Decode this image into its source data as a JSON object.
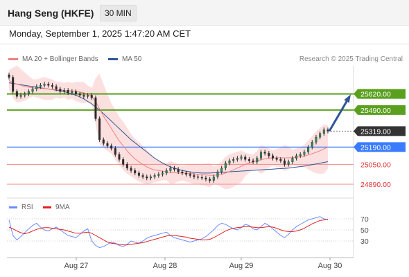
{
  "header": {
    "title": "Hang Seng (HKFE)",
    "interval": "30 MIN",
    "datetime": "Monday, September 1, 2025 1:47:20 AM CET"
  },
  "legend": {
    "ma20_label": "MA 20 + Bollinger Bands",
    "ma50_label": "MA 50",
    "research": "Research © 2025 Trading Central",
    "rsi_label": "RSI",
    "ma9_label": "9MA"
  },
  "colors": {
    "ma20": "#f08080",
    "ma50": "#2f5597",
    "bollinger_fill": "#fbd5d5",
    "green": "#5aa01e",
    "blue": "#3a7bff",
    "red_line": "#f08a8a",
    "candle": "#2a2a2a",
    "rsi": "#6b8cff",
    "rsi_ma": "#e02020",
    "arrow": "#2f5597"
  },
  "chart_data": [
    {
      "type": "candlestick",
      "x_ticks": [
        "Aug 27",
        "Aug 28",
        "Aug 29",
        "Aug 30"
      ],
      "ylim": [
        24800,
        25820
      ],
      "current_price": 25319.0,
      "levels": [
        {
          "value": 25620.0,
          "label": "25620.00",
          "kind": "resistance"
        },
        {
          "value": 25490.0,
          "label": "25490.00",
          "kind": "resistance"
        },
        {
          "value": 25319.0,
          "label": "25319.00",
          "kind": "current"
        },
        {
          "value": 25190.0,
          "label": "25190.00",
          "kind": "pivot"
        },
        {
          "value": 25050.0,
          "label": "25050.00",
          "kind": "support"
        },
        {
          "value": 24890.0,
          "label": "24890.00",
          "kind": "support"
        }
      ],
      "close": [
        25755,
        25640,
        25600,
        25610,
        25620,
        25640,
        25660,
        25680,
        25690,
        25700,
        25690,
        25680,
        25660,
        25640,
        25650,
        25630,
        25640,
        25620,
        25610,
        25600,
        25610,
        25590,
        25420,
        25250,
        25220,
        25200,
        25180,
        25130,
        25090,
        25050,
        25020,
        25000,
        24980,
        24960,
        24950,
        24940,
        24950,
        24960,
        24970,
        24980,
        25000,
        25020,
        25010,
        24990,
        24980,
        24970,
        24960,
        24950,
        24945,
        24940,
        24930,
        24920,
        24950,
        24990,
        25020,
        25060,
        25080,
        25090,
        25100,
        25110,
        25090,
        25080,
        25070,
        25100,
        25150,
        25140,
        25120,
        25100,
        25090,
        25080,
        25050,
        25070,
        25100,
        25120,
        25130,
        25150,
        25190,
        25230,
        25270,
        25300,
        25330,
        25319
      ],
      "series": [
        {
          "name": "MA 20",
          "values": [
            25730,
            25710,
            25700,
            25690,
            25680,
            25675,
            25670,
            25665,
            25665,
            25665,
            25660,
            25655,
            25655,
            25650,
            25650,
            25645,
            25645,
            25640,
            25635,
            25630,
            25620,
            25600,
            25560,
            25500,
            25440,
            25390,
            25340,
            25290,
            25240,
            25200,
            25160,
            25125,
            25095,
            25070,
            25050,
            25030,
            25015,
            25005,
            25000,
            24995,
            24990,
            24985,
            24982,
            24980,
            24980,
            24978,
            24976,
            24974,
            24970,
            24968,
            24965,
            24962,
            24962,
            24965,
            24970,
            24980,
            24992,
            25005,
            25020,
            25035,
            25050,
            25060,
            25070,
            25080,
            25088,
            25095,
            25100,
            25102,
            25103,
            25103,
            25102,
            25103,
            25105,
            25108,
            25112,
            25118,
            25126,
            25136,
            25148,
            25160,
            25175,
            25190
          ]
        },
        {
          "name": "MA 50",
          "values": [
            25710,
            25705,
            25700,
            25695,
            25690,
            25685,
            25680,
            25675,
            25670,
            25665,
            25660,
            25655,
            25650,
            25645,
            25640,
            25630,
            25620,
            25610,
            25595,
            25580,
            25560,
            25540,
            25515,
            25490,
            25460,
            25430,
            25400,
            25370,
            25340,
            25310,
            25280,
            25250,
            25225,
            25200,
            25175,
            25150,
            25125,
            25100,
            25080,
            25060,
            25045,
            25030,
            25020,
            25010,
            25000,
            24995,
            24990,
            24985,
            24982,
            24980,
            24980,
            24980,
            24982,
            24984,
            24986,
            24988,
            24990,
            24992,
            24994,
            24996,
            24998,
            25000,
            25002,
            25004,
            25006,
            25008,
            25010,
            25012,
            25014,
            25016,
            25018,
            25020,
            25024,
            25028,
            25032,
            25036,
            25042,
            25048,
            25054,
            25060,
            25066,
            25072
          ]
        }
      ]
    },
    {
      "type": "line",
      "title": "RSI",
      "ylim": [
        0,
        100
      ],
      "y_ticks": [
        30,
        50,
        70
      ],
      "series": [
        {
          "name": "RSI",
          "values": [
            68,
            40,
            32,
            38,
            45,
            52,
            58,
            62,
            55,
            50,
            48,
            52,
            55,
            50,
            45,
            40,
            38,
            36,
            42,
            48,
            52,
            30,
            22,
            18,
            20,
            24,
            28,
            26,
            22,
            20,
            24,
            30,
            28,
            26,
            30,
            35,
            38,
            40,
            42,
            44,
            46,
            40,
            36,
            34,
            32,
            30,
            28,
            30,
            32,
            34,
            38,
            44,
            50,
            58,
            62,
            60,
            56,
            52,
            50,
            54,
            60,
            58,
            52,
            50,
            56,
            62,
            58,
            52,
            46,
            40,
            36,
            42,
            50,
            56,
            60,
            64,
            68,
            70,
            72,
            74,
            70,
            68
          ]
        },
        {
          "name": "9MA",
          "values": [
            55,
            52,
            48,
            45,
            43,
            45,
            48,
            51,
            53,
            54,
            54,
            53,
            52,
            51,
            50,
            48,
            46,
            44,
            44,
            45,
            46,
            44,
            40,
            36,
            32,
            28,
            26,
            25,
            24,
            23,
            23,
            24,
            25,
            26,
            27,
            29,
            31,
            33,
            35,
            37,
            39,
            40,
            40,
            39,
            38,
            37,
            35,
            34,
            33,
            32,
            32,
            33,
            36,
            40,
            44,
            48,
            51,
            53,
            54,
            55,
            56,
            56,
            55,
            54,
            54,
            55,
            56,
            55,
            53,
            50,
            48,
            47,
            47,
            48,
            50,
            53,
            57,
            61,
            64,
            67,
            68,
            69
          ]
        }
      ]
    }
  ]
}
